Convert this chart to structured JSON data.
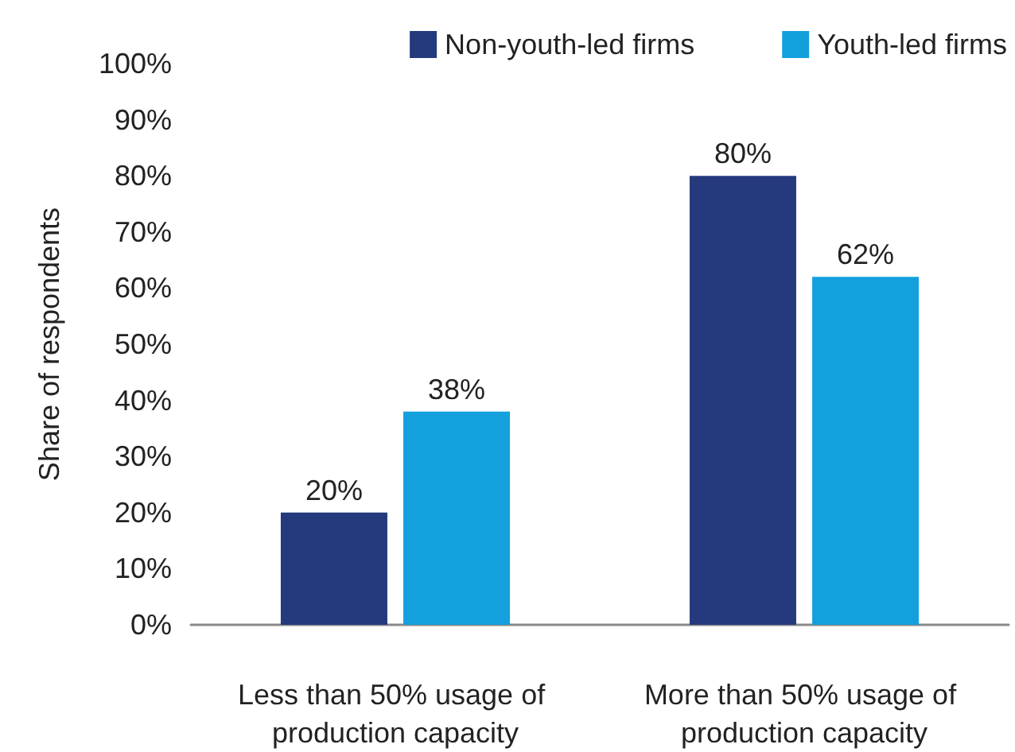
{
  "chart_data": {
    "type": "bar",
    "ylabel": "Share of respondents",
    "categories": [
      "Less than 50% usage of production capacity",
      "More than 50% usage of production capacity"
    ],
    "series": [
      {
        "name": "Non-youth-led firms",
        "color": "#253a7c",
        "values": [
          20,
          80
        ],
        "value_labels": [
          "20%",
          "80%"
        ]
      },
      {
        "name": "Youth-led firms",
        "color": "#13a0dc",
        "values": [
          38,
          62
        ],
        "value_labels": [
          "38%",
          "62%"
        ]
      }
    ],
    "ylim": [
      0,
      100
    ],
    "yticks": [
      {
        "value": 0,
        "label": "0%"
      },
      {
        "value": 10,
        "label": "10%"
      },
      {
        "value": 20,
        "label": "20%"
      },
      {
        "value": 30,
        "label": "30%"
      },
      {
        "value": 40,
        "label": "40%"
      },
      {
        "value": 50,
        "label": "50%"
      },
      {
        "value": 60,
        "label": "60%"
      },
      {
        "value": 70,
        "label": "70%"
      },
      {
        "value": 80,
        "label": "80%"
      },
      {
        "value": 90,
        "label": "90%"
      },
      {
        "value": 100,
        "label": "100%"
      }
    ],
    "grid": false,
    "legend": "top right"
  }
}
